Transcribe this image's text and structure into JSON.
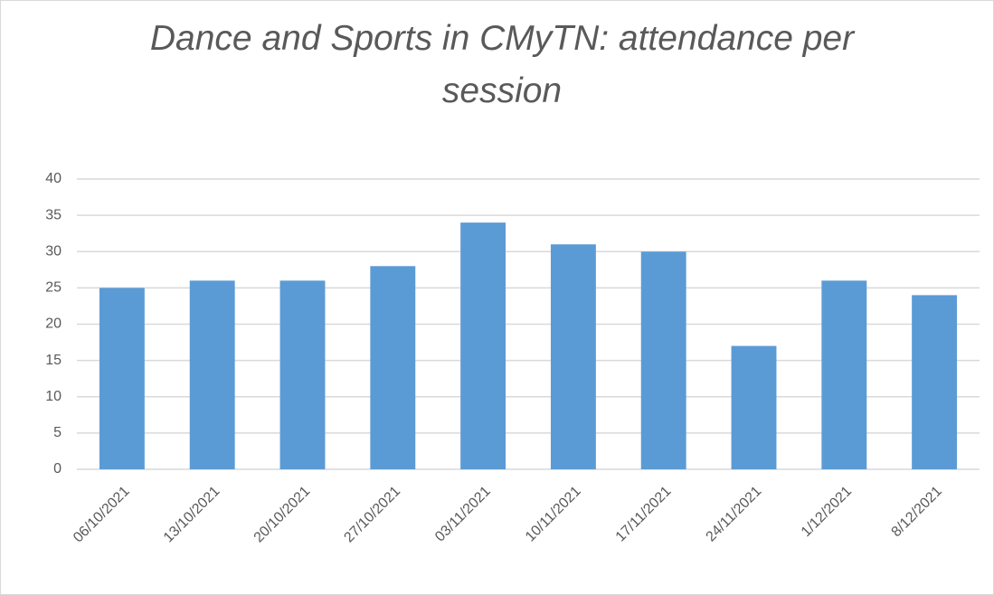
{
  "chart_data": {
    "type": "bar",
    "title": "Dance and Sports in CMyTN: attendance per session",
    "categories": [
      "06/10/2021",
      "13/10/2021",
      "20/10/2021",
      "27/10/2021",
      "03/11/2021",
      "10/11/2021",
      "17/11/2021",
      "24/11/2021",
      "1/12/2021",
      "8/12/2021"
    ],
    "values": [
      25,
      26,
      26,
      28,
      34,
      31,
      30,
      17,
      26,
      24
    ],
    "color": "#5b9bd5",
    "ylim": [
      0,
      40
    ],
    "yticks": [
      0,
      5,
      10,
      15,
      20,
      25,
      30,
      35,
      40
    ],
    "grid": true
  }
}
